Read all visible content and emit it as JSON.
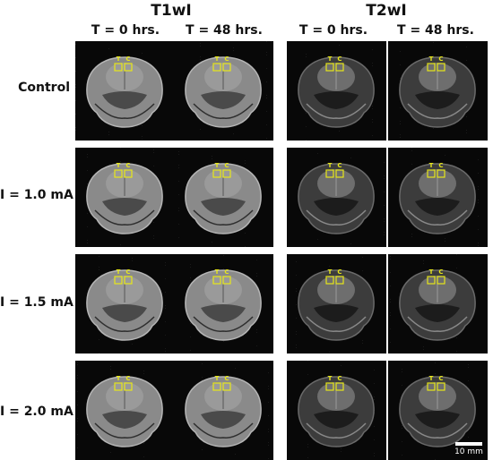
{
  "groups": [
    {
      "title": "T1wI",
      "contrast": "t1"
    },
    {
      "title": "T2wI",
      "contrast": "t2"
    }
  ],
  "columns": [
    "T = 0 hrs.",
    "T = 48 hrs.",
    "T = 0 hrs.",
    "T = 48 hrs."
  ],
  "rows": [
    "Control",
    "I = 1.0 mA",
    "I = 1.5 mA",
    "I = 2.0 mA"
  ],
  "roi_labels": {
    "left": "T",
    "right": "C"
  },
  "scale_bar": {
    "label": "10 mm"
  },
  "colors": {
    "roi": "#e6e619",
    "background": "#080808",
    "t1_tissue": "#8a8a8a",
    "t2_tissue": "#3c3c3c"
  }
}
